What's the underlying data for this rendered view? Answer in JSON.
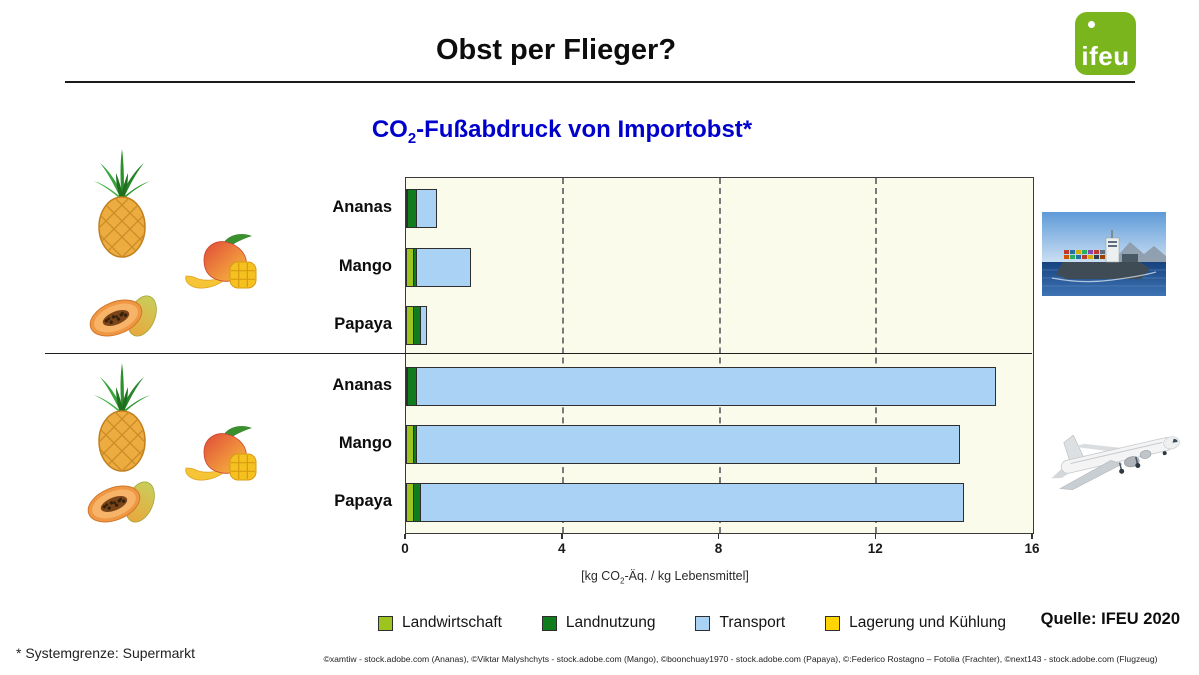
{
  "header": {
    "title": "Obst per Flieger?",
    "logo_text": "ifeu"
  },
  "chart": {
    "title": {
      "prefix": "CO",
      "subscript": "2",
      "suffix": "-Fußabdruck von Importobst",
      "asterisk": "*"
    },
    "xlabel": {
      "prefix": "[kg CO",
      "subscript": "2",
      "suffix": "-Äq. / kg Lebensmittel]"
    }
  },
  "chart_data": {
    "type": "bar",
    "orientation": "horizontal",
    "stacked": true,
    "categories": [
      "Ananas",
      "Mango",
      "Papaya",
      "Ananas",
      "Mango",
      "Papaya"
    ],
    "row_groups": [
      "Schiff",
      "Schiff",
      "Schiff",
      "Flugzeug",
      "Flugzeug",
      "Flugzeug"
    ],
    "series": [
      {
        "name": "Landwirtschaft",
        "color": "#9DC41E",
        "values": [
          0.05,
          0.2,
          0.2,
          0.05,
          0.2,
          0.2
        ]
      },
      {
        "name": "Landnutzung",
        "color": "#107C1E",
        "values": [
          0.25,
          0.1,
          0.2,
          0.25,
          0.1,
          0.2
        ]
      },
      {
        "name": "Transport",
        "color": "#A9D2F5",
        "values": [
          0.55,
          1.4,
          0.2,
          14.8,
          13.9,
          13.9
        ]
      },
      {
        "name": "Lagerung und Kühlung",
        "color": "#FFD400",
        "values": [
          0,
          0,
          0,
          0,
          0,
          0
        ]
      }
    ],
    "totals": [
      0.85,
      1.7,
      0.6,
      15.1,
      14.2,
      14.3
    ],
    "xlim": [
      0,
      16
    ],
    "xticks": [
      0,
      4,
      8,
      12,
      16
    ],
    "grid": "dashed vertical gridlines at 4, 8, 12",
    "legend_position": "bottom",
    "plot_bg": "#FBFBEC"
  },
  "annotations": {
    "source": "Quelle: IFEU 2020",
    "footnote": "* Systemgrenze: Supermarkt",
    "credits": "©xamtiw - stock.adobe.com (Ananas), ©Viktar Malyshchyts - stock.adobe.com (Mango), ©boonchuay1970 - stock.adobe.com (Papaya), ©:Federico Rostagno – Fotolia (Frachter), ©next143 - stock.adobe.com (Flugzeug)"
  },
  "images": {
    "ship": "container-ship-photo",
    "plane": "airplane-photo",
    "fruit_group_ship": [
      "pineapple",
      "mango",
      "papaya"
    ],
    "fruit_group_plane": [
      "pineapple",
      "mango",
      "papaya"
    ]
  },
  "colors": {
    "title_blue": "#0000CC",
    "logo_green": "#7AB51E",
    "bar_border": "#2E2E2E",
    "gridline": "#7a7a7a"
  }
}
